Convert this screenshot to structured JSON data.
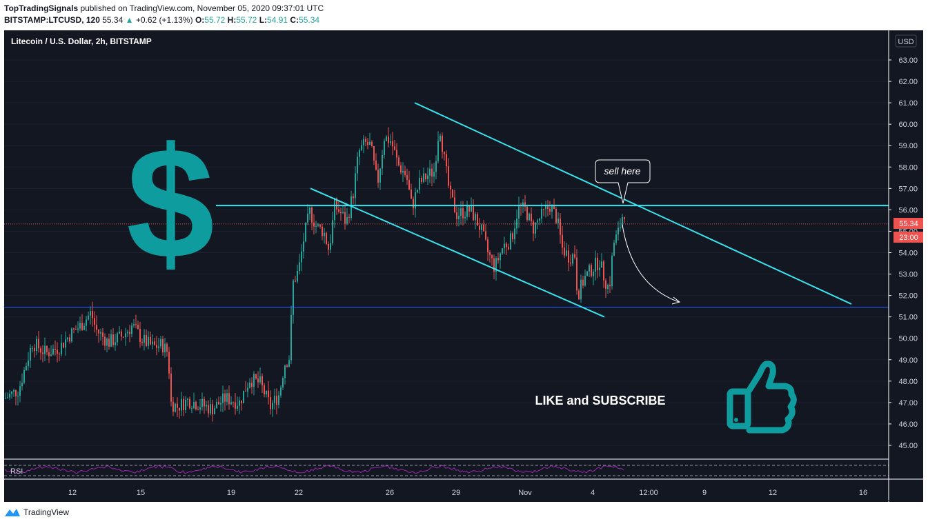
{
  "header": {
    "author": "TopTradingSignals",
    "published_text": " published on TradingView.com, November 05, 2020 09:37:01 UTC",
    "symbol": "BITSTAMP:LTCUSD, 120",
    "last": "55.34",
    "change": "+0.62 (+1.13%)",
    "o_label": "O:",
    "o": "55.72",
    "h_label": "H:",
    "h": "55.72",
    "l_label": "L:",
    "l": "54.91",
    "c_label": "C:",
    "c": "55.34"
  },
  "footer": {
    "brand": "TradingView"
  },
  "chart_data": {
    "type": "candlestick",
    "title": "Litecoin / U.S. Dollar, 2h, BITSTAMP",
    "currency": "USD",
    "ylim": [
      44.4,
      64
    ],
    "y_ticks": [
      "45.00",
      "46.00",
      "47.00",
      "48.00",
      "49.00",
      "50.00",
      "51.00",
      "52.00",
      "53.00",
      "54.00",
      "55.00",
      "56.00",
      "57.00",
      "58.00",
      "59.00",
      "60.00",
      "61.00",
      "62.00",
      "63.00"
    ],
    "x_ticks": [
      "12",
      "15",
      "19",
      "22",
      "26",
      "29",
      "Nov",
      "4",
      "12:00",
      "9",
      "12",
      "16"
    ],
    "last_price": "55.34",
    "countdown": "23:00",
    "price_path": [
      [
        0,
        47.2
      ],
      [
        20,
        47.6
      ],
      [
        40,
        49.8
      ],
      [
        60,
        49.3
      ],
      [
        80,
        49.6
      ],
      [
        95,
        50.2
      ],
      [
        110,
        50.6
      ],
      [
        125,
        51.2
      ],
      [
        132,
        50.4
      ],
      [
        150,
        49.8
      ],
      [
        170,
        50.1
      ],
      [
        185,
        50.6
      ],
      [
        200,
        49.9
      ],
      [
        215,
        49.6
      ],
      [
        228,
        49.7
      ],
      [
        237,
        49.3
      ],
      [
        240,
        47.0
      ],
      [
        250,
        46.8
      ],
      [
        265,
        47.1
      ],
      [
        285,
        46.9
      ],
      [
        300,
        46.7
      ],
      [
        320,
        47.2
      ],
      [
        340,
        47.0
      ],
      [
        355,
        48.1
      ],
      [
        370,
        47.9
      ],
      [
        385,
        46.8
      ],
      [
        398,
        47.4
      ],
      [
        405,
        48.8
      ],
      [
        412,
        49.1
      ],
      [
        418,
        52.6
      ],
      [
        426,
        53.2
      ],
      [
        434,
        54.8
      ],
      [
        442,
        55.9
      ],
      [
        452,
        55.2
      ],
      [
        462,
        55.0
      ],
      [
        470,
        54.1
      ],
      [
        478,
        56.2
      ],
      [
        488,
        55.8
      ],
      [
        495,
        55.4
      ],
      [
        505,
        56.8
      ],
      [
        513,
        58.7
      ],
      [
        522,
        59.1
      ],
      [
        530,
        59.0
      ],
      [
        540,
        57.2
      ],
      [
        550,
        59.4
      ],
      [
        560,
        59.2
      ],
      [
        570,
        58.1
      ],
      [
        582,
        57.6
      ],
      [
        590,
        56.1
      ],
      [
        600,
        57.2
      ],
      [
        612,
        57.6
      ],
      [
        622,
        57.8
      ],
      [
        630,
        60.0
      ],
      [
        638,
        58.1
      ],
      [
        645,
        56.7
      ],
      [
        655,
        55.8
      ],
      [
        665,
        55.9
      ],
      [
        675,
        56.0
      ],
      [
        690,
        55.1
      ],
      [
        700,
        54.0
      ],
      [
        710,
        53.3
      ],
      [
        722,
        54.3
      ],
      [
        734,
        54.6
      ],
      [
        744,
        56.1
      ],
      [
        755,
        56.0
      ],
      [
        765,
        55.1
      ],
      [
        775,
        55.6
      ],
      [
        790,
        56.2
      ],
      [
        800,
        55.6
      ],
      [
        808,
        54.2
      ],
      [
        818,
        53.8
      ],
      [
        826,
        53.9
      ],
      [
        830,
        52.0
      ],
      [
        840,
        52.8
      ],
      [
        852,
        53.3
      ],
      [
        862,
        53.6
      ],
      [
        870,
        52.7
      ],
      [
        876,
        52.3
      ],
      [
        882,
        54.4
      ],
      [
        890,
        55.0
      ],
      [
        897,
        56.0
      ],
      [
        904,
        55.4
      ]
    ],
    "annotations": {
      "callout": "sell here",
      "promo": "LIKE and SUBSCRIBE",
      "rsi_label": "RSI",
      "resistance_price": 56.2,
      "support_price": 51.45,
      "channel_upper": [
        [
          595,
          61.0
        ],
        [
          1228,
          51.6
        ]
      ],
      "channel_upper_mid": [
        [
          444,
          57.0
        ],
        [
          870,
          51.0
        ]
      ]
    },
    "colors": {
      "background": "#131722",
      "up": "#26a69a",
      "down": "#ef5350",
      "trendline": "#36e6f0",
      "support": "#2962ff",
      "dollar": "#0f9c9f",
      "thumb": "#0f9c9f",
      "rsi": "#9c27b0"
    }
  }
}
